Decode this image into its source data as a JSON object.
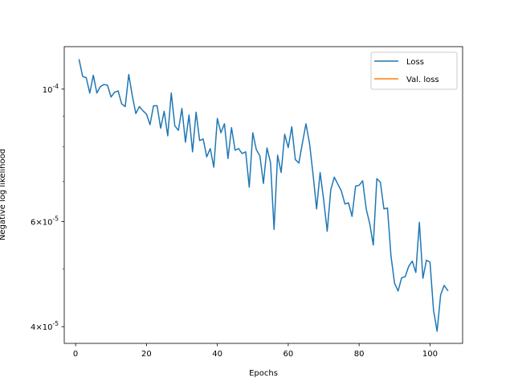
{
  "chart_data": {
    "type": "line",
    "title": "",
    "xlabel": "Epochs",
    "ylabel": "Negative log likelihood",
    "yscale": "log",
    "grid": false,
    "legend": "top-right",
    "xlim": [
      -3.2,
      109.2
    ],
    "ylim": [
      3.75e-05,
      0.0001178
    ],
    "x_ticks": [
      0,
      20,
      40,
      60,
      80,
      100
    ],
    "x_tick_labels": [
      "0",
      "20",
      "40",
      "60",
      "80",
      "100"
    ],
    "y_ticks": [
      0.0001,
      6e-05,
      4e-05
    ],
    "y_tick_labels": [
      "10^{-4}",
      "6×10^{-5}",
      "4×10^{-5}"
    ],
    "y_minor_ticks": [
      9e-05,
      8e-05,
      7e-05,
      5e-05
    ],
    "colors": {
      "loss": "#1f77b4",
      "val_loss": "#ff7f0e"
    },
    "series": [
      {
        "name": "Loss",
        "x": [
          1,
          2,
          3,
          4,
          5,
          6,
          7,
          8,
          9,
          10,
          11,
          12,
          13,
          14,
          15,
          16,
          17,
          18,
          19,
          20,
          21,
          22,
          23,
          24,
          25,
          26,
          27,
          28,
          29,
          30,
          31,
          32,
          33,
          34,
          35,
          36,
          37,
          38,
          39,
          40,
          41,
          42,
          43,
          44,
          45,
          46,
          47,
          48,
          49,
          50,
          51,
          52,
          53,
          54,
          55,
          56,
          57,
          58,
          59,
          60,
          61,
          62,
          63,
          64,
          65,
          66,
          67,
          68,
          69,
          70,
          71,
          72,
          73,
          74,
          75,
          76,
          77,
          78,
          79,
          80,
          81,
          82,
          83,
          84,
          85,
          86,
          87,
          88,
          89,
          90,
          91,
          92,
          93,
          94,
          95,
          96,
          97,
          98,
          99,
          100,
          101,
          102,
          103,
          104,
          105
        ],
        "values": [
          0.000112,
          0.000105,
          0.0001045,
          9.85e-05,
          0.0001055,
          9.85e-05,
          0.000101,
          0.0001018,
          0.0001015,
          9.7e-05,
          9.88e-05,
          9.93e-05,
          9.45e-05,
          9.35e-05,
          0.0001058,
          9.75e-05,
          9.1e-05,
          9.35e-05,
          9.2e-05,
          9.08e-05,
          8.72e-05,
          9.38e-05,
          9.38e-05,
          8.6e-05,
          9.18e-05,
          8.35e-05,
          9.85e-05,
          8.68e-05,
          8.53e-05,
          9.28e-05,
          8.15e-05,
          9.05e-05,
          7.85e-05,
          9.15e-05,
          8.2e-05,
          8.25e-05,
          7.7e-05,
          7.95e-05,
          7.4e-05,
          8.93e-05,
          8.45e-05,
          8.75e-05,
          7.65e-05,
          8.62e-05,
          7.9e-05,
          7.95e-05,
          7.8e-05,
          7.85e-05,
          6.85e-05,
          8.45e-05,
          7.92e-05,
          7.73e-05,
          6.95e-05,
          7.97e-05,
          7.53e-05,
          5.82e-05,
          7.75e-05,
          7.25e-05,
          8.4e-05,
          7.98e-05,
          8.65e-05,
          7.62e-05,
          7.52e-05,
          8.12e-05,
          8.75e-05,
          8.12e-05,
          7.2e-05,
          6.3e-05,
          7.25e-05,
          6.52e-05,
          5.78e-05,
          6.78e-05,
          7.12e-05,
          6.93e-05,
          6.75e-05,
          6.42e-05,
          6.45e-05,
          6.12e-05,
          6.88e-05,
          6.9e-05,
          7.02e-05,
          6.3e-05,
          5.95e-05,
          5.48e-05,
          7.08e-05,
          6.98e-05,
          6.3e-05,
          6.32e-05,
          5.25e-05,
          4.73e-05,
          4.59e-05,
          4.83e-05,
          4.85e-05,
          5.05e-05,
          5.15e-05,
          4.93e-05,
          5.98e-05,
          4.82e-05,
          5.17e-05,
          5.13e-05,
          4.26e-05,
          3.93e-05,
          4.52e-05,
          4.69e-05,
          4.6e-05
        ]
      },
      {
        "name": "Val. loss",
        "x": [],
        "values": []
      }
    ]
  }
}
